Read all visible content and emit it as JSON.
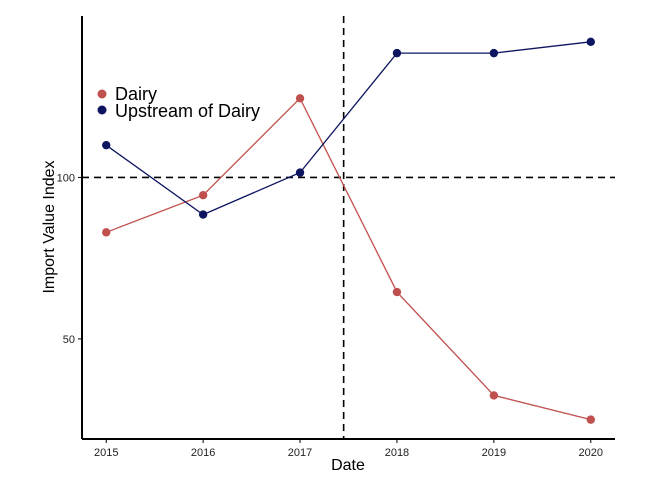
{
  "chart_data": {
    "type": "line",
    "x": [
      2015,
      2016,
      2017,
      2018,
      2019,
      2020
    ],
    "xlabel": "Date",
    "ylabel": "Import Value Index",
    "x_ticks": [
      "2015",
      "2016",
      "2017",
      "2018",
      "2019",
      "2020"
    ],
    "y_ticks": [
      50,
      100
    ],
    "y_tick_labels": [
      "50",
      "100"
    ],
    "xlim": [
      2014.75,
      2020.25
    ],
    "ylim": [
      19,
      150
    ],
    "grid": false,
    "legend_position": "top-left",
    "reference_lines": {
      "horizontal_y": 100,
      "vertical_x": 2017.45
    },
    "series": [
      {
        "name": "Dairy",
        "color": "#c0504d",
        "values": [
          83,
          94.5,
          124.5,
          64.5,
          32.5,
          25
        ]
      },
      {
        "name": "Upstream of Dairy",
        "color": "#0d1560",
        "values": [
          110,
          88.5,
          101.5,
          138.5,
          138.5,
          142
        ]
      }
    ]
  }
}
